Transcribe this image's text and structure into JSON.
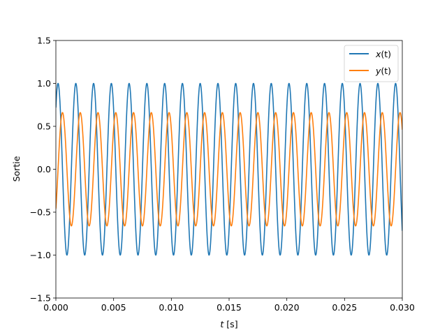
{
  "chart_data": {
    "type": "line",
    "title": "",
    "xlabel": "t [s]",
    "xlabel_parts": {
      "var": "t",
      "unit": " [s]"
    },
    "ylabel": "Sortie",
    "xlim": [
      0.0,
      0.03
    ],
    "ylim": [
      -1.5,
      1.5
    ],
    "grid": false,
    "legend_position": "top-right",
    "x_ticks": [
      {
        "value": 0.0,
        "label": "0.000"
      },
      {
        "value": 0.005,
        "label": "0.005"
      },
      {
        "value": 0.01,
        "label": "0.010"
      },
      {
        "value": 0.015,
        "label": "0.015"
      },
      {
        "value": 0.02,
        "label": "0.020"
      },
      {
        "value": 0.025,
        "label": "0.025"
      },
      {
        "value": 0.03,
        "label": "0.030"
      }
    ],
    "y_ticks": [
      {
        "value": -1.5,
        "label": "−1.5"
      },
      {
        "value": -1.0,
        "label": "−1.0"
      },
      {
        "value": -0.5,
        "label": "−0.5"
      },
      {
        "value": 0.0,
        "label": "0.0"
      },
      {
        "value": 0.5,
        "label": "0.5"
      },
      {
        "value": 1.0,
        "label": "1.0"
      },
      {
        "value": 1.5,
        "label": "1.5"
      }
    ],
    "series": [
      {
        "name": "x(t)",
        "legend_label": {
          "var": "x",
          "arg": "(t)"
        },
        "color": "#1f77b4",
        "function": "sin",
        "amplitude": 1.0,
        "frequency_hz": 650,
        "phase_rad": 0.8
      },
      {
        "name": "y(t)",
        "legend_label": {
          "var": "y",
          "arg": "(t)"
        },
        "color": "#ff7f0e",
        "function": "sin",
        "amplitude": 0.66,
        "frequency_hz": 650,
        "phase_rad": -0.77
      }
    ]
  }
}
